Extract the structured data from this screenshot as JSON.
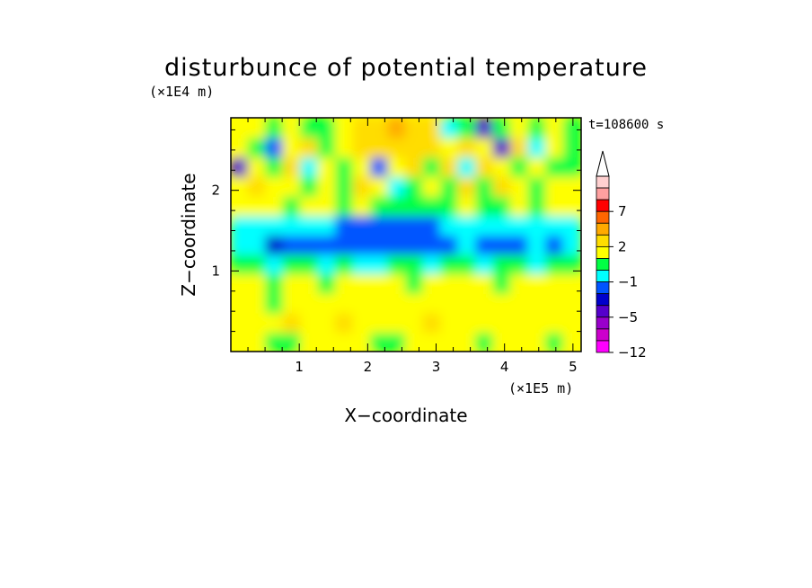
{
  "chart_data": {
    "type": "heatmap",
    "title": "disturbunce of potential temperature",
    "xlabel": "X−coordinate",
    "ylabel": "Z−coordinate",
    "x_unit": "(×1E5 m)",
    "y_unit": "(×1E4 m)",
    "time_label": "t=108600 s",
    "xlim": [
      0,
      5.12
    ],
    "ylim": [
      0,
      2.9
    ],
    "x_ticks": [
      "1",
      "2",
      "3",
      "4",
      "5"
    ],
    "x_tick_values": [
      1,
      2,
      3,
      4,
      5
    ],
    "y_ticks": [
      "1",
      "2"
    ],
    "y_tick_values": [
      1,
      2
    ],
    "colorbar": {
      "levels": [
        -12,
        -9,
        -7,
        -5,
        -4,
        -3,
        -1,
        0,
        1,
        2,
        3,
        5,
        7,
        9,
        12
      ],
      "colors": [
        "#ff00ff",
        "#cc00cc",
        "#9900cc",
        "#5500cc",
        "#0000cc",
        "#0055ff",
        "#00ffff",
        "#00ff44",
        "#ffff00",
        "#ffdd00",
        "#ffaa00",
        "#ff6600",
        "#ff0000",
        "#ffa0a0",
        "#ffd0d0"
      ],
      "tick_labels": [
        "−12",
        "−5",
        "−1",
        "2",
        "7"
      ],
      "tick_values": [
        -12,
        -5,
        -1,
        2,
        7
      ],
      "extend": "max"
    },
    "field": {
      "grid_x": 20,
      "grid_z": 12,
      "values": [
        [
          1.2,
          1.0,
          0.6,
          0.8,
          1.3,
          1.2,
          1.1,
          1.0,
          0.5,
          0.6,
          1.0,
          1.1,
          1.2,
          1.0,
          0.9,
          1.1,
          1.2,
          1.0,
          0.8,
          1.0
        ],
        [
          1.6,
          1.4,
          1.2,
          2.0,
          1.1,
          1.5,
          2.1,
          1.3,
          1.8,
          1.5,
          1.4,
          2.2,
          1.6,
          1.8,
          1.2,
          1.9,
          1.4,
          1.5,
          1.3,
          1.4
        ],
        [
          1.4,
          1.5,
          0.8,
          1.2,
          1.6,
          1.0,
          1.3,
          1.7,
          1.1,
          1.4,
          1.6,
          1.2,
          1.3,
          1.5,
          1.8,
          1.3,
          1.1,
          1.6,
          1.2,
          1.3
        ],
        [
          1.2,
          1.0,
          0.4,
          1.0,
          1.2,
          0.9,
          1.1,
          1.0,
          1.2,
          1.1,
          0.9,
          1.0,
          1.2,
          1.0,
          1.1,
          0.9,
          1.0,
          1.1,
          1.0,
          1.2
        ],
        [
          0.2,
          0.0,
          -0.3,
          0.1,
          0.0,
          -0.2,
          0.1,
          -0.3,
          -0.1,
          0.2,
          0.0,
          -0.2,
          0.1,
          0.3,
          -0.1,
          0.0,
          0.2,
          -0.2,
          0.1,
          0.0
        ],
        [
          -1.0,
          -0.9,
          -3.2,
          -1.4,
          -1.2,
          -1.1,
          -1.3,
          -1.5,
          -1.6,
          -1.5,
          -1.4,
          -1.5,
          -1.3,
          -0.4,
          -1.2,
          -1.3,
          -1.1,
          -1.0,
          -1.2,
          -0.9
        ],
        [
          -0.3,
          -0.8,
          -0.7,
          -0.2,
          -0.9,
          -1.0,
          -1.1,
          -1.2,
          -1.4,
          -1.5,
          -1.3,
          -1.2,
          -0.8,
          -1.0,
          -0.6,
          -0.9,
          -0.7,
          -0.8,
          -0.4,
          -0.6
        ],
        [
          1.1,
          1.5,
          1.2,
          0.6,
          1.0,
          1.3,
          0.8,
          1.1,
          0.4,
          0.0,
          0.5,
          0.3,
          0.9,
          1.2,
          0.4,
          0.8,
          1.0,
          0.7,
          1.3,
          1.1
        ],
        [
          1.3,
          2.2,
          1.0,
          1.6,
          0.8,
          1.2,
          0.5,
          2.3,
          1.0,
          -0.5,
          0.6,
          1.5,
          0.4,
          2.2,
          0.3,
          2.4,
          1.6,
          0.9,
          1.4,
          1.2
        ],
        [
          -4.5,
          1.8,
          0.5,
          2.2,
          -1.0,
          1.6,
          0.3,
          1.4,
          -2.0,
          1.2,
          2.6,
          0.8,
          2.9,
          -0.5,
          2.5,
          1.4,
          0.6,
          1.2,
          0.9,
          0.5
        ],
        [
          1.5,
          0.3,
          -1.2,
          1.1,
          2.0,
          0.2,
          1.6,
          2.3,
          2.8,
          2.6,
          2.8,
          2.2,
          1.4,
          2.4,
          1.8,
          -4.2,
          2.2,
          -0.5,
          1.6,
          0.8
        ],
        [
          1.8,
          1.4,
          0.6,
          1.2,
          0.8,
          0.5,
          1.2,
          2.6,
          2.9,
          3.2,
          2.7,
          2.4,
          -0.4,
          0.8,
          -4.5,
          0.6,
          1.2,
          0.5,
          1.0,
          0.6
        ]
      ]
    }
  }
}
